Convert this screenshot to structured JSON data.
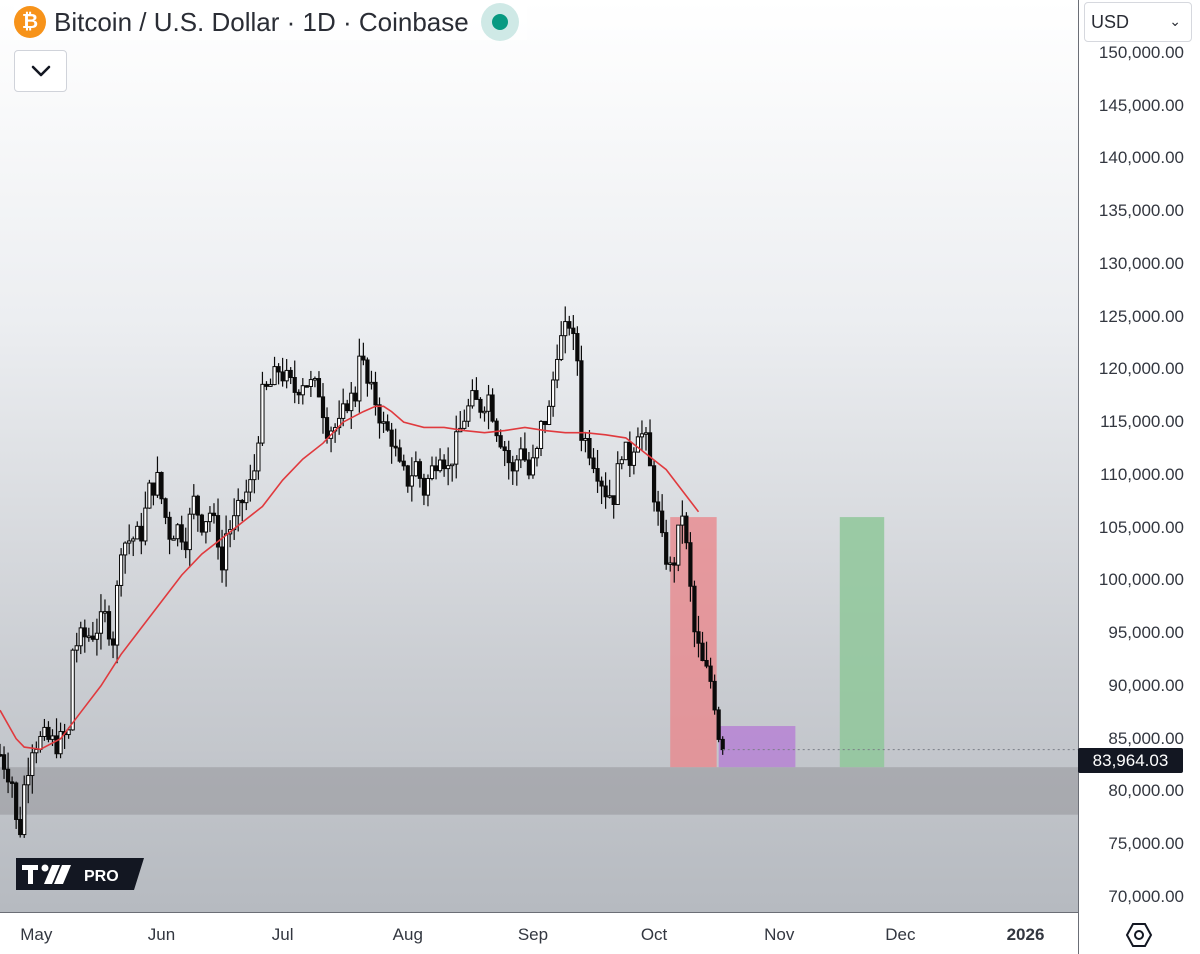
{
  "header": {
    "title": "Bitcoin / U.S. Dollar · 1D · Coinbase",
    "currency": "USD",
    "last_price_label": "83,964.03",
    "logo_text": "PRO"
  },
  "colors": {
    "ma": "#e03a3e",
    "candle": "#0a0a0a",
    "stop_box": "#e8888d",
    "entry_box": "#b682d4",
    "target_box": "#8fc79a",
    "support_zone": "#8c8c91"
  },
  "icons": {
    "coin": "bitcoin-icon",
    "status": "market-status-icon",
    "collapse": "chevron-down-icon",
    "settings": "hexagon-settings-icon"
  },
  "chart_data": {
    "type": "candlestick",
    "title": "Bitcoin / U.S. Dollar · 1D · Coinbase",
    "ylim": [
      70000,
      155000
    ],
    "y_ticks": [
      "150,000.00",
      "145,000.00",
      "140,000.00",
      "135,000.00",
      "130,000.00",
      "125,000.00",
      "120,000.00",
      "115,000.00",
      "110,000.00",
      "105,000.00",
      "100,000.00",
      "95,000.00",
      "90,000.00",
      "85,000.00",
      "80,000.00",
      "75,000.00",
      "70,000.00"
    ],
    "x_ticks": [
      "May",
      "Jun",
      "Jul",
      "Aug",
      "Sep",
      "Oct",
      "Nov",
      "Dec",
      "2026"
    ],
    "x_tick_days": [
      34,
      65,
      95,
      126,
      157,
      187,
      218,
      248,
      279
    ],
    "x_range_days": [
      25,
      292
    ],
    "price_series": {
      "name": "BTCUSD close (approx.)",
      "points": [
        [
          25,
          83500
        ],
        [
          28,
          81000
        ],
        [
          29,
          77000
        ],
        [
          30,
          76500
        ],
        [
          31,
          80500
        ],
        [
          33,
          84500
        ],
        [
          36,
          85000
        ],
        [
          39,
          84500
        ],
        [
          42,
          85500
        ],
        [
          43,
          93500
        ],
        [
          45,
          94500
        ],
        [
          48,
          95000
        ],
        [
          51,
          96500
        ],
        [
          53,
          94500
        ],
        [
          55,
          103500
        ],
        [
          58,
          104000
        ],
        [
          60,
          104500
        ],
        [
          62,
          108500
        ],
        [
          64,
          109500
        ],
        [
          66,
          106000
        ],
        [
          67,
          104500
        ],
        [
          69,
          105000
        ],
        [
          71,
          104000
        ],
        [
          73,
          107500
        ],
        [
          75,
          105500
        ],
        [
          77,
          106500
        ],
        [
          79,
          104000
        ],
        [
          80,
          101000
        ],
        [
          81,
          104500
        ],
        [
          83,
          105500
        ],
        [
          85,
          107500
        ],
        [
          87,
          109000
        ],
        [
          88,
          110500
        ],
        [
          90,
          117500
        ],
        [
          92,
          118500
        ],
        [
          94,
          120000
        ],
        [
          96,
          119000
        ],
        [
          98,
          118000
        ],
        [
          100,
          119000
        ],
        [
          102,
          118500
        ],
        [
          104,
          118000
        ],
        [
          106,
          114500
        ],
        [
          109,
          114500
        ],
        [
          111,
          117000
        ],
        [
          113,
          117500
        ],
        [
          114,
          122000
        ],
        [
          116,
          118500
        ],
        [
          118,
          117000
        ],
        [
          120,
          114500
        ],
        [
          122,
          113500
        ],
        [
          124,
          110500
        ],
        [
          126,
          109500
        ],
        [
          128,
          111000
        ],
        [
          130,
          108500
        ],
        [
          132,
          110500
        ],
        [
          134,
          112500
        ],
        [
          136,
          110500
        ],
        [
          138,
          113000
        ],
        [
          140,
          115500
        ],
        [
          142,
          117000
        ],
        [
          144,
          116500
        ],
        [
          146,
          117500
        ],
        [
          148,
          114500
        ],
        [
          150,
          112500
        ],
        [
          152,
          110000
        ],
        [
          154,
          113000
        ],
        [
          156,
          110000
        ],
        [
          158,
          112000
        ],
        [
          159,
          114500
        ],
        [
          161,
          116000
        ],
        [
          163,
          122000
        ],
        [
          165,
          123500
        ],
        [
          166,
          124500
        ],
        [
          167,
          122500
        ],
        [
          168,
          121000
        ],
        [
          169,
          114000
        ],
        [
          171,
          112500
        ],
        [
          173,
          110500
        ],
        [
          175,
          108500
        ],
        [
          177,
          108000
        ],
        [
          179,
          112500
        ],
        [
          181,
          111500
        ],
        [
          183,
          114500
        ],
        [
          185,
          113000
        ],
        [
          186,
          110500
        ],
        [
          188,
          106000
        ],
        [
          189,
          103500
        ],
        [
          191,
          101000
        ],
        [
          192,
          102000
        ],
        [
          194,
          106500
        ],
        [
          195,
          103000
        ],
        [
          197,
          95000
        ],
        [
          199,
          92000
        ],
        [
          201,
          90500
        ],
        [
          202,
          88500
        ],
        [
          203,
          85500
        ],
        [
          204,
          83964
        ]
      ]
    },
    "moving_average": {
      "name": "Moving average (red)",
      "points": [
        [
          25,
          87700
        ],
        [
          29,
          85000
        ],
        [
          31,
          84200
        ],
        [
          35,
          84000
        ],
        [
          40,
          85000
        ],
        [
          45,
          87500
        ],
        [
          50,
          90000
        ],
        [
          55,
          93000
        ],
        [
          60,
          95500
        ],
        [
          65,
          98000
        ],
        [
          70,
          100500
        ],
        [
          75,
          102500
        ],
        [
          80,
          104000
        ],
        [
          85,
          105500
        ],
        [
          90,
          107000
        ],
        [
          95,
          109500
        ],
        [
          100,
          111500
        ],
        [
          105,
          113000
        ],
        [
          110,
          115000
        ],
        [
          115,
          116000
        ],
        [
          118,
          116500
        ],
        [
          120,
          116500
        ],
        [
          122,
          116000
        ],
        [
          125,
          115000
        ],
        [
          130,
          114500
        ],
        [
          135,
          114500
        ],
        [
          140,
          114200
        ],
        [
          145,
          114000
        ],
        [
          150,
          114200
        ],
        [
          155,
          114500
        ],
        [
          160,
          114200
        ],
        [
          165,
          114000
        ],
        [
          170,
          114000
        ],
        [
          175,
          113800
        ],
        [
          180,
          113500
        ],
        [
          185,
          112000
        ],
        [
          190,
          110500
        ],
        [
          195,
          108000
        ],
        [
          198,
          106500
        ]
      ]
    },
    "annotations": {
      "support_zone": {
        "from": 77800,
        "to": 82300,
        "color": "#8c8c91"
      },
      "stop_box": {
        "x0": 191,
        "x1": 202.5,
        "y0": 82300,
        "y1": 106000
      },
      "entry_box": {
        "x0": 203,
        "x1": 222,
        "y0": 82300,
        "y1": 86200
      },
      "target_box": {
        "x0": 233,
        "x1": 244,
        "y0": 82300,
        "y1": 106000
      },
      "last_price": 83964.03
    }
  }
}
